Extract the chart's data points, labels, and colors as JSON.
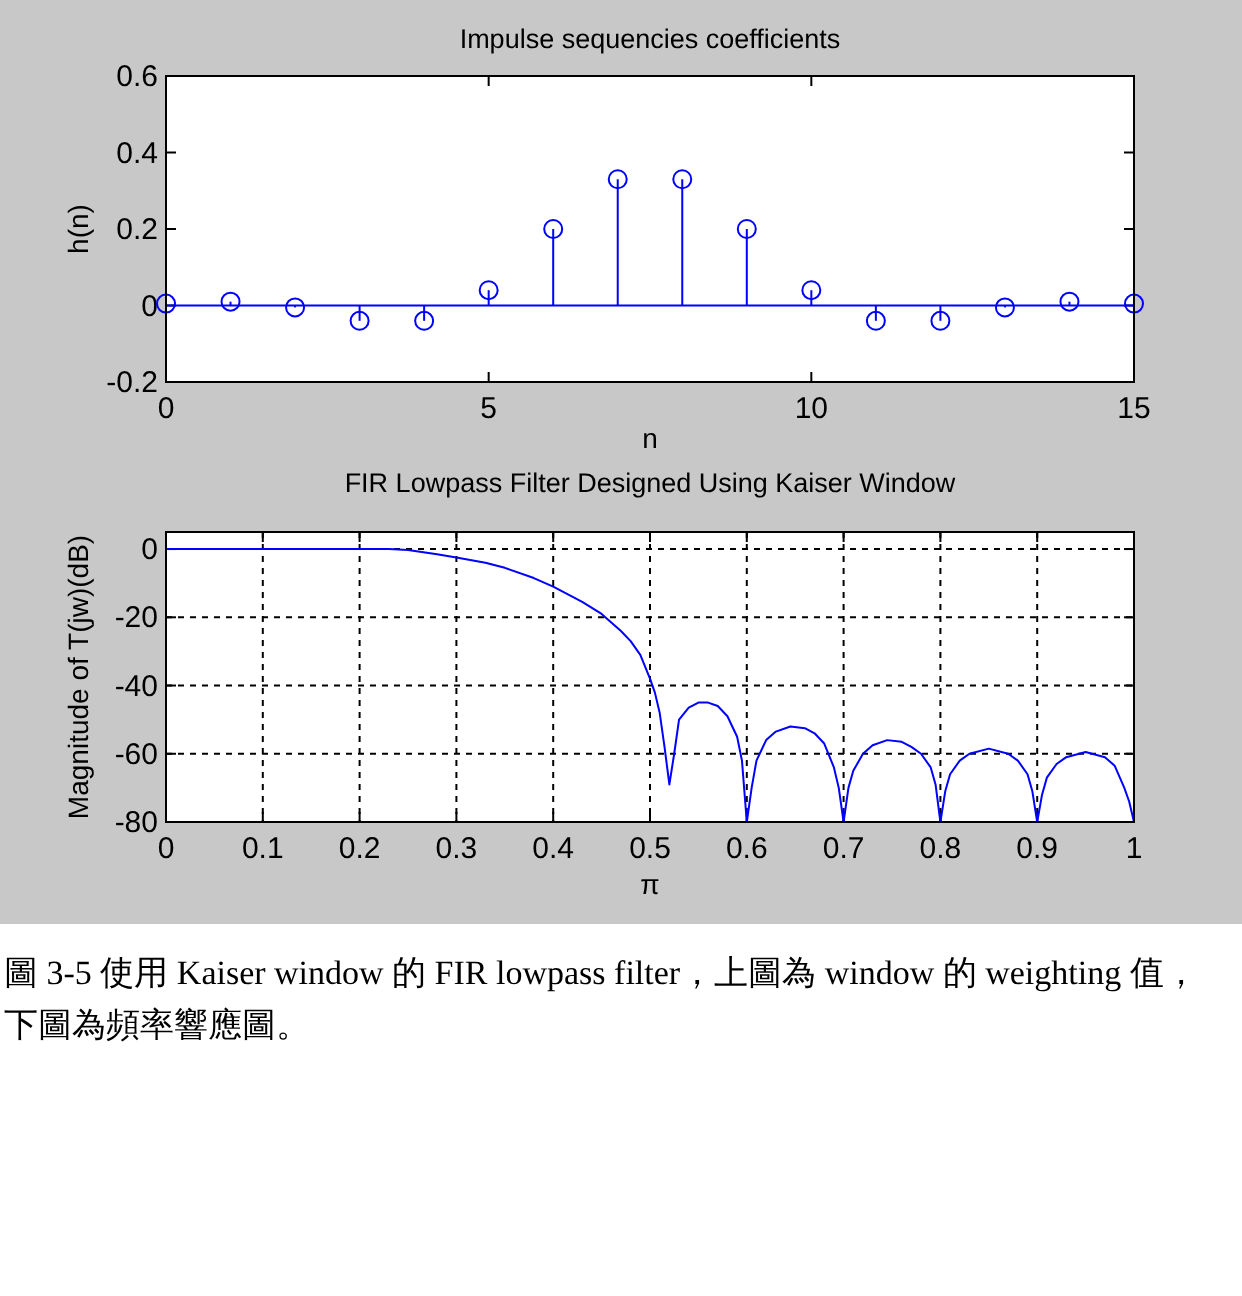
{
  "chart_data": [
    {
      "type": "lollipop",
      "title": "Impulse sequencies coefficients",
      "xlabel": "n",
      "ylabel": "h(n)",
      "color": "#0000ff",
      "marker": "circle",
      "grid": false,
      "x": [
        0,
        1,
        2,
        3,
        4,
        5,
        6,
        7,
        8,
        9,
        10,
        11,
        12,
        13,
        14,
        15
      ],
      "values": [
        0.005,
        0.01,
        -0.005,
        -0.04,
        -0.04,
        0.04,
        0.2,
        0.33,
        0.33,
        0.2,
        0.04,
        -0.04,
        -0.04,
        -0.005,
        0.01,
        0.005
      ],
      "ref_lines": [
        {
          "axis": "y",
          "value": 0,
          "color": "#0000ff"
        }
      ],
      "xlim": [
        0,
        15
      ],
      "ylim": [
        -0.2,
        0.6
      ],
      "xticks": [
        0,
        5,
        10,
        15
      ],
      "yticks": [
        -0.2,
        0,
        0.2,
        0.4,
        0.6
      ]
    },
    {
      "type": "line",
      "title": "FIR Lowpass Filter Designed Using Kaiser Window",
      "xlabel": "π",
      "ylabel": "Magnitude of T(jw)(dB)",
      "color": "#0000ff",
      "grid": true,
      "marker": "none",
      "line_style": "solid",
      "x": [
        0,
        0.1,
        0.2,
        0.23,
        0.25,
        0.28,
        0.3,
        0.33,
        0.35,
        0.38,
        0.4,
        0.43,
        0.45,
        0.47,
        0.48,
        0.49,
        0.5,
        0.505,
        0.51,
        0.515,
        0.52,
        0.525,
        0.53,
        0.54,
        0.55,
        0.56,
        0.57,
        0.58,
        0.59,
        0.595,
        0.6,
        0.605,
        0.61,
        0.62,
        0.63,
        0.645,
        0.66,
        0.67,
        0.68,
        0.69,
        0.695,
        0.7,
        0.705,
        0.71,
        0.72,
        0.73,
        0.745,
        0.76,
        0.77,
        0.78,
        0.79,
        0.795,
        0.8,
        0.805,
        0.81,
        0.82,
        0.83,
        0.85,
        0.87,
        0.88,
        0.89,
        0.895,
        0.9,
        0.905,
        0.91,
        0.92,
        0.93,
        0.95,
        0.97,
        0.98,
        0.99,
        0.995,
        1
      ],
      "values": [
        0,
        0,
        0,
        0,
        -0.3,
        -1.5,
        -2.5,
        -4,
        -5.5,
        -8.5,
        -11,
        -15.5,
        -19,
        -24,
        -27,
        -31,
        -38,
        -42,
        -48,
        -58,
        -69,
        -60,
        -50,
        -46.5,
        -45,
        -45,
        -46,
        -49,
        -55,
        -62,
        -80,
        -70,
        -62,
        -56,
        -53.5,
        -52,
        -52.5,
        -54,
        -57,
        -64,
        -70,
        -80,
        -70,
        -65,
        -60,
        -57.5,
        -56,
        -56.5,
        -58,
        -60,
        -64,
        -69,
        -80,
        -71,
        -66,
        -62,
        -60,
        -58.5,
        -60,
        -62,
        -66,
        -71,
        -80,
        -72,
        -67,
        -63,
        -61,
        -59.5,
        -61,
        -63.5,
        -70,
        -74,
        -80
      ],
      "xlim": [
        0,
        1
      ],
      "ylim": [
        -80,
        5
      ],
      "xticks": [
        0,
        0.1,
        0.2,
        0.3,
        0.4,
        0.5,
        0.6,
        0.7,
        0.8,
        0.9,
        1
      ],
      "yticks": [
        -80,
        -60,
        -40,
        -20,
        0
      ],
      "annotations": [
        "圖 3-5 使用 Kaiser window 的 FIR lowpass filter，上圖為 window 的 weighting 值，下圖為頻率響應圖。"
      ]
    }
  ]
}
